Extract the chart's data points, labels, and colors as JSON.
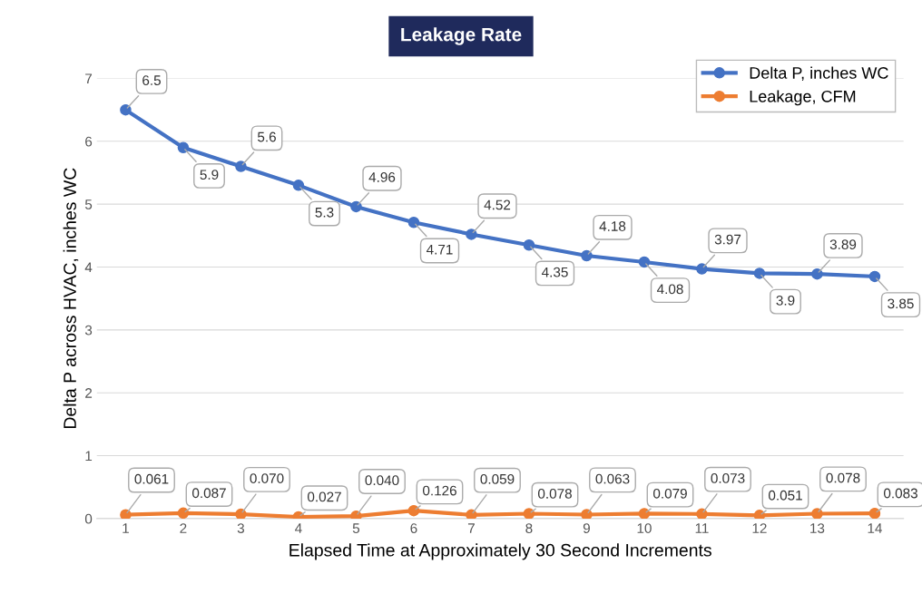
{
  "chart_data": {
    "type": "line",
    "title": "Leakage Rate",
    "xlabel": "Elapsed Time at Approximately 30 Second Increments",
    "ylabel": "Delta P across HVAC, inches WC",
    "categories": [
      "1",
      "2",
      "3",
      "4",
      "5",
      "6",
      "7",
      "8",
      "9",
      "10",
      "11",
      "12",
      "13",
      "14"
    ],
    "series": [
      {
        "name": "Delta P, inches WC",
        "color": "#4472c4",
        "values": [
          6.5,
          5.9,
          5.6,
          5.3,
          4.96,
          4.71,
          4.52,
          4.35,
          4.18,
          4.08,
          3.97,
          3.9,
          3.89,
          3.85
        ],
        "value_labels": [
          "6.5",
          "5.9",
          "5.6",
          "5.3",
          "4.96",
          "4.71",
          "4.52",
          "4.35",
          "4.18",
          "4.08",
          "3.97",
          "3.9",
          "3.89",
          "3.85"
        ]
      },
      {
        "name": "Leakage, CFM",
        "color": "#ed7d31",
        "values": [
          0.061,
          0.087,
          0.07,
          0.027,
          0.04,
          0.126,
          0.059,
          0.078,
          0.063,
          0.079,
          0.073,
          0.051,
          0.078,
          0.083
        ],
        "value_labels": [
          "0.061",
          "0.087",
          "0.070",
          "0.027",
          "0.040",
          "0.126",
          "0.059",
          "0.078",
          "0.063",
          "0.079",
          "0.073",
          "0.051",
          "0.078",
          "0.083"
        ]
      }
    ],
    "ylim": [
      0,
      7
    ],
    "yticks": [
      0,
      1,
      2,
      3,
      4,
      5,
      6,
      7
    ],
    "grid": "y",
    "legend": "top right",
    "marker": "circle",
    "line_style": "solid"
  }
}
